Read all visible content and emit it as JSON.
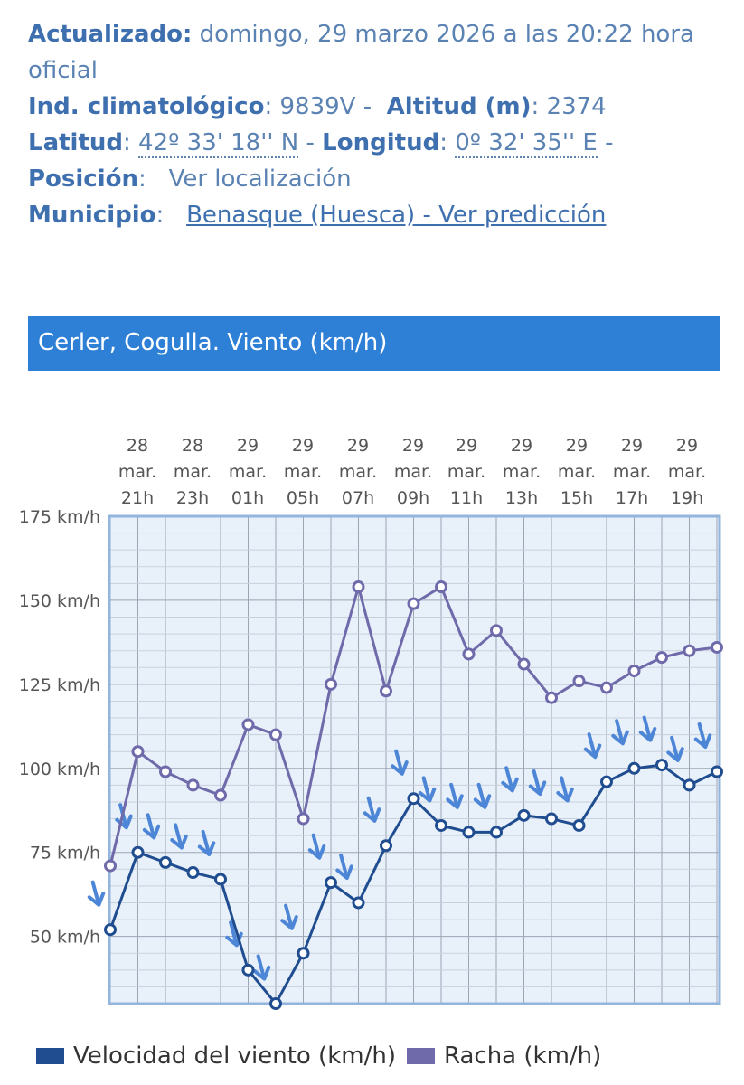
{
  "info": {
    "updated_label": "Actualizado:",
    "updated_value": "domingo, 29 marzo 2026 a las 20:22 hora oficial",
    "climate_label": "Ind. climatológico",
    "climate_value": "9839V",
    "altitude_label": "Altitud (m)",
    "altitude_value": "2374",
    "latitude_label": "Latitud",
    "latitude_value": "42º 33' 18'' N",
    "longitude_label": "Longitud",
    "longitude_value": "0º 32' 35'' E",
    "position_label": "Posición",
    "position_link": "Ver localización",
    "municipality_label": "Municipio",
    "municipality_link": "Benasque (Huesca) - Ver predicción"
  },
  "banner": {
    "title": "Cerler, Cogulla. Viento (km/h)"
  },
  "colors": {
    "speed": "#1f4d8f",
    "gust": "#6f6aaa",
    "arrow": "#4d86d6",
    "banner": "#2e7fd6"
  },
  "legend": {
    "speed_label": "Velocidad del viento (km/h)",
    "gust_label": "Racha (km/h)"
  },
  "chart_data": {
    "type": "line",
    "title": "Cerler, Cogulla. Viento (km/h)",
    "x_tick_labels": [
      [
        "28",
        "mar.",
        "21h"
      ],
      [
        "28",
        "mar.",
        "23h"
      ],
      [
        "29",
        "mar.",
        "01h"
      ],
      [
        "29",
        "mar.",
        "05h"
      ],
      [
        "29",
        "mar.",
        "07h"
      ],
      [
        "29",
        "mar.",
        "09h"
      ],
      [
        "29",
        "mar.",
        "11h"
      ],
      [
        "29",
        "mar.",
        "13h"
      ],
      [
        "29",
        "mar.",
        "15h"
      ],
      [
        "29",
        "mar.",
        "17h"
      ],
      [
        "29",
        "mar.",
        "19h"
      ]
    ],
    "y_tick_labels": [
      "175 km/h",
      "150 km/h",
      "125 km/h",
      "100 km/h",
      "75 km/h",
      "50 km/h"
    ],
    "ylim": [
      30,
      175
    ],
    "grid": true,
    "legend_position": "bottom",
    "series": [
      {
        "name": "Velocidad del viento (km/h)",
        "values": [
          52,
          75,
          72,
          69,
          67,
          40,
          30,
          45,
          66,
          60,
          77,
          91,
          83,
          81,
          81,
          86,
          85,
          83,
          96,
          100,
          101,
          95,
          99
        ]
      },
      {
        "name": "Racha (km/h)",
        "values": [
          71,
          105,
          99,
          95,
          92,
          113,
          110,
          85,
          125,
          154,
          123,
          149,
          154,
          134,
          141,
          131,
          121,
          126,
          124,
          129,
          133,
          135,
          136
        ]
      }
    ],
    "wind_direction_arrows": "pointing roughly south (arrows point downward)"
  }
}
